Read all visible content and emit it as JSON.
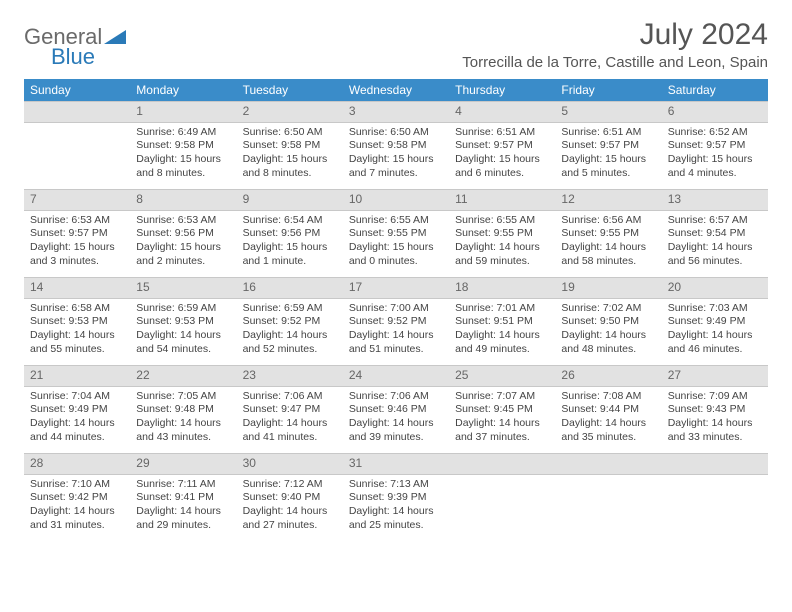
{
  "logo": {
    "text1": "General",
    "text2": "Blue"
  },
  "title": "July 2024",
  "location": "Torrecilla de la Torre, Castille and Leon, Spain",
  "colors": {
    "header_bg": "#3a8cc9",
    "header_text": "#ffffff",
    "daynum_bg": "#e2e2e2",
    "logo_gray": "#6a6a6a",
    "logo_blue": "#2a7ab8"
  },
  "days_of_week": [
    "Sunday",
    "Monday",
    "Tuesday",
    "Wednesday",
    "Thursday",
    "Friday",
    "Saturday"
  ],
  "weeks": [
    [
      {
        "num": "",
        "sunrise": "",
        "sunset": "",
        "daylight": ""
      },
      {
        "num": "1",
        "sunrise": "Sunrise: 6:49 AM",
        "sunset": "Sunset: 9:58 PM",
        "daylight": "Daylight: 15 hours and 8 minutes."
      },
      {
        "num": "2",
        "sunrise": "Sunrise: 6:50 AM",
        "sunset": "Sunset: 9:58 PM",
        "daylight": "Daylight: 15 hours and 8 minutes."
      },
      {
        "num": "3",
        "sunrise": "Sunrise: 6:50 AM",
        "sunset": "Sunset: 9:58 PM",
        "daylight": "Daylight: 15 hours and 7 minutes."
      },
      {
        "num": "4",
        "sunrise": "Sunrise: 6:51 AM",
        "sunset": "Sunset: 9:57 PM",
        "daylight": "Daylight: 15 hours and 6 minutes."
      },
      {
        "num": "5",
        "sunrise": "Sunrise: 6:51 AM",
        "sunset": "Sunset: 9:57 PM",
        "daylight": "Daylight: 15 hours and 5 minutes."
      },
      {
        "num": "6",
        "sunrise": "Sunrise: 6:52 AM",
        "sunset": "Sunset: 9:57 PM",
        "daylight": "Daylight: 15 hours and 4 minutes."
      }
    ],
    [
      {
        "num": "7",
        "sunrise": "Sunrise: 6:53 AM",
        "sunset": "Sunset: 9:57 PM",
        "daylight": "Daylight: 15 hours and 3 minutes."
      },
      {
        "num": "8",
        "sunrise": "Sunrise: 6:53 AM",
        "sunset": "Sunset: 9:56 PM",
        "daylight": "Daylight: 15 hours and 2 minutes."
      },
      {
        "num": "9",
        "sunrise": "Sunrise: 6:54 AM",
        "sunset": "Sunset: 9:56 PM",
        "daylight": "Daylight: 15 hours and 1 minute."
      },
      {
        "num": "10",
        "sunrise": "Sunrise: 6:55 AM",
        "sunset": "Sunset: 9:55 PM",
        "daylight": "Daylight: 15 hours and 0 minutes."
      },
      {
        "num": "11",
        "sunrise": "Sunrise: 6:55 AM",
        "sunset": "Sunset: 9:55 PM",
        "daylight": "Daylight: 14 hours and 59 minutes."
      },
      {
        "num": "12",
        "sunrise": "Sunrise: 6:56 AM",
        "sunset": "Sunset: 9:55 PM",
        "daylight": "Daylight: 14 hours and 58 minutes."
      },
      {
        "num": "13",
        "sunrise": "Sunrise: 6:57 AM",
        "sunset": "Sunset: 9:54 PM",
        "daylight": "Daylight: 14 hours and 56 minutes."
      }
    ],
    [
      {
        "num": "14",
        "sunrise": "Sunrise: 6:58 AM",
        "sunset": "Sunset: 9:53 PM",
        "daylight": "Daylight: 14 hours and 55 minutes."
      },
      {
        "num": "15",
        "sunrise": "Sunrise: 6:59 AM",
        "sunset": "Sunset: 9:53 PM",
        "daylight": "Daylight: 14 hours and 54 minutes."
      },
      {
        "num": "16",
        "sunrise": "Sunrise: 6:59 AM",
        "sunset": "Sunset: 9:52 PM",
        "daylight": "Daylight: 14 hours and 52 minutes."
      },
      {
        "num": "17",
        "sunrise": "Sunrise: 7:00 AM",
        "sunset": "Sunset: 9:52 PM",
        "daylight": "Daylight: 14 hours and 51 minutes."
      },
      {
        "num": "18",
        "sunrise": "Sunrise: 7:01 AM",
        "sunset": "Sunset: 9:51 PM",
        "daylight": "Daylight: 14 hours and 49 minutes."
      },
      {
        "num": "19",
        "sunrise": "Sunrise: 7:02 AM",
        "sunset": "Sunset: 9:50 PM",
        "daylight": "Daylight: 14 hours and 48 minutes."
      },
      {
        "num": "20",
        "sunrise": "Sunrise: 7:03 AM",
        "sunset": "Sunset: 9:49 PM",
        "daylight": "Daylight: 14 hours and 46 minutes."
      }
    ],
    [
      {
        "num": "21",
        "sunrise": "Sunrise: 7:04 AM",
        "sunset": "Sunset: 9:49 PM",
        "daylight": "Daylight: 14 hours and 44 minutes."
      },
      {
        "num": "22",
        "sunrise": "Sunrise: 7:05 AM",
        "sunset": "Sunset: 9:48 PM",
        "daylight": "Daylight: 14 hours and 43 minutes."
      },
      {
        "num": "23",
        "sunrise": "Sunrise: 7:06 AM",
        "sunset": "Sunset: 9:47 PM",
        "daylight": "Daylight: 14 hours and 41 minutes."
      },
      {
        "num": "24",
        "sunrise": "Sunrise: 7:06 AM",
        "sunset": "Sunset: 9:46 PM",
        "daylight": "Daylight: 14 hours and 39 minutes."
      },
      {
        "num": "25",
        "sunrise": "Sunrise: 7:07 AM",
        "sunset": "Sunset: 9:45 PM",
        "daylight": "Daylight: 14 hours and 37 minutes."
      },
      {
        "num": "26",
        "sunrise": "Sunrise: 7:08 AM",
        "sunset": "Sunset: 9:44 PM",
        "daylight": "Daylight: 14 hours and 35 minutes."
      },
      {
        "num": "27",
        "sunrise": "Sunrise: 7:09 AM",
        "sunset": "Sunset: 9:43 PM",
        "daylight": "Daylight: 14 hours and 33 minutes."
      }
    ],
    [
      {
        "num": "28",
        "sunrise": "Sunrise: 7:10 AM",
        "sunset": "Sunset: 9:42 PM",
        "daylight": "Daylight: 14 hours and 31 minutes."
      },
      {
        "num": "29",
        "sunrise": "Sunrise: 7:11 AM",
        "sunset": "Sunset: 9:41 PM",
        "daylight": "Daylight: 14 hours and 29 minutes."
      },
      {
        "num": "30",
        "sunrise": "Sunrise: 7:12 AM",
        "sunset": "Sunset: 9:40 PM",
        "daylight": "Daylight: 14 hours and 27 minutes."
      },
      {
        "num": "31",
        "sunrise": "Sunrise: 7:13 AM",
        "sunset": "Sunset: 9:39 PM",
        "daylight": "Daylight: 14 hours and 25 minutes."
      },
      {
        "num": "",
        "sunrise": "",
        "sunset": "",
        "daylight": ""
      },
      {
        "num": "",
        "sunrise": "",
        "sunset": "",
        "daylight": ""
      },
      {
        "num": "",
        "sunrise": "",
        "sunset": "",
        "daylight": ""
      }
    ]
  ]
}
